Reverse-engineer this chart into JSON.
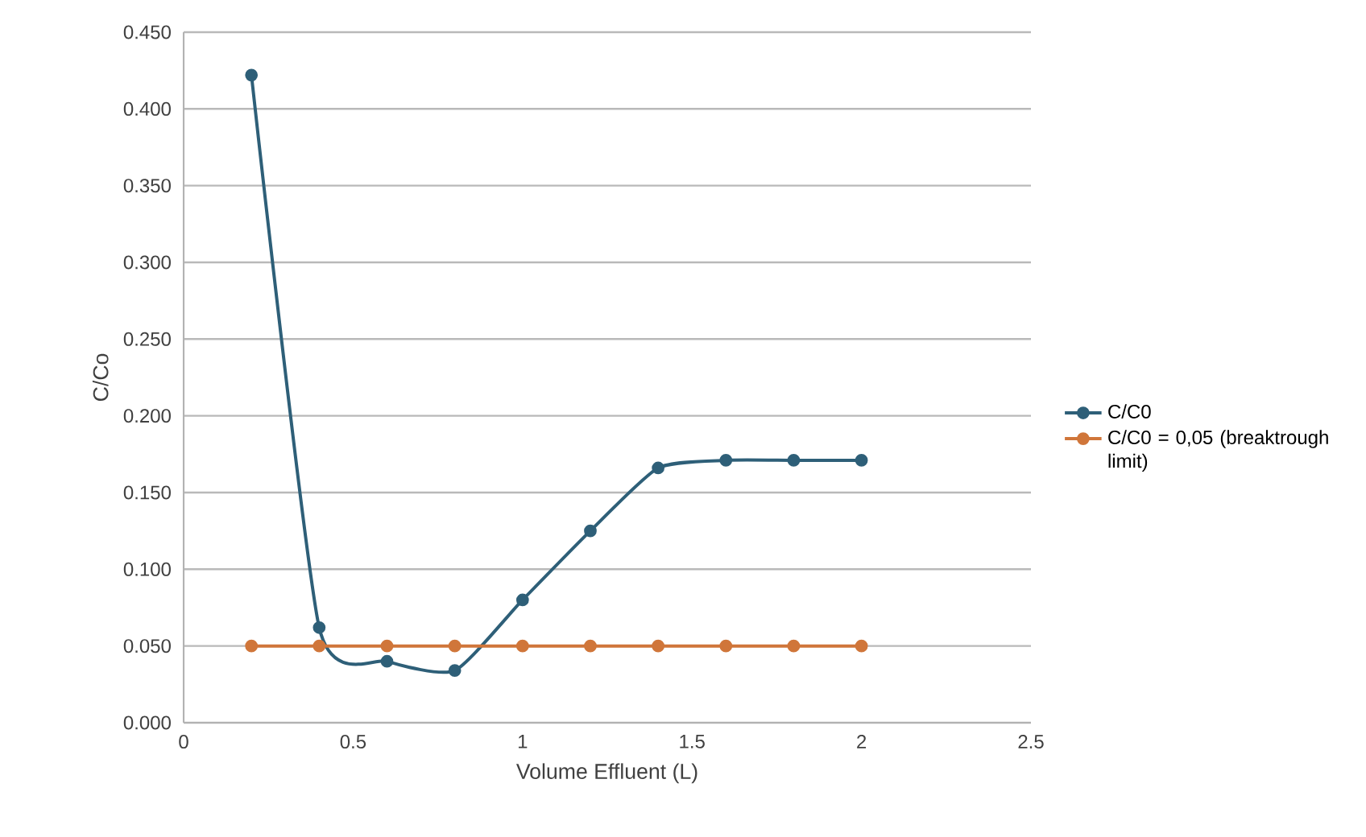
{
  "chart_data": {
    "type": "line",
    "xlabel": "Volume Effluent (L)",
    "ylabel": "C/Co",
    "x": [
      0.2,
      0.4,
      0.6,
      0.8,
      1.0,
      1.2,
      1.4,
      1.6,
      1.8,
      2.0
    ],
    "series": [
      {
        "name": "C/C0",
        "color": "#2e5f78",
        "values": [
          0.422,
          0.062,
          0.04,
          0.034,
          0.08,
          0.125,
          0.166,
          0.171,
          0.171,
          0.171
        ]
      },
      {
        "name": "C/C0 = 0,05 (breaktrough limit)",
        "color": "#d0763a",
        "values": [
          0.05,
          0.05,
          0.05,
          0.05,
          0.05,
          0.05,
          0.05,
          0.05,
          0.05,
          0.05
        ]
      }
    ],
    "xlim": [
      0,
      2.5
    ],
    "xticks": [
      0,
      0.5,
      1,
      1.5,
      2,
      2.5
    ],
    "ylim": [
      0,
      0.45
    ],
    "yticks": [
      {
        "value": 0,
        "label": "0.000"
      },
      {
        "value": 0.05,
        "label": "0.050"
      },
      {
        "value": 0.1,
        "label": "0.100"
      },
      {
        "value": 0.15,
        "label": "0.150"
      },
      {
        "value": 0.2,
        "label": "0.200"
      },
      {
        "value": 0.25,
        "label": "0.250"
      },
      {
        "value": 0.3,
        "label": "0.300"
      },
      {
        "value": 0.35,
        "label": "0.350"
      },
      {
        "value": 0.4,
        "label": "0.400"
      },
      {
        "value": 0.45,
        "label": "0.450"
      }
    ],
    "grid": "y",
    "legend": "right",
    "marker": "circle",
    "line_style": "solid"
  }
}
